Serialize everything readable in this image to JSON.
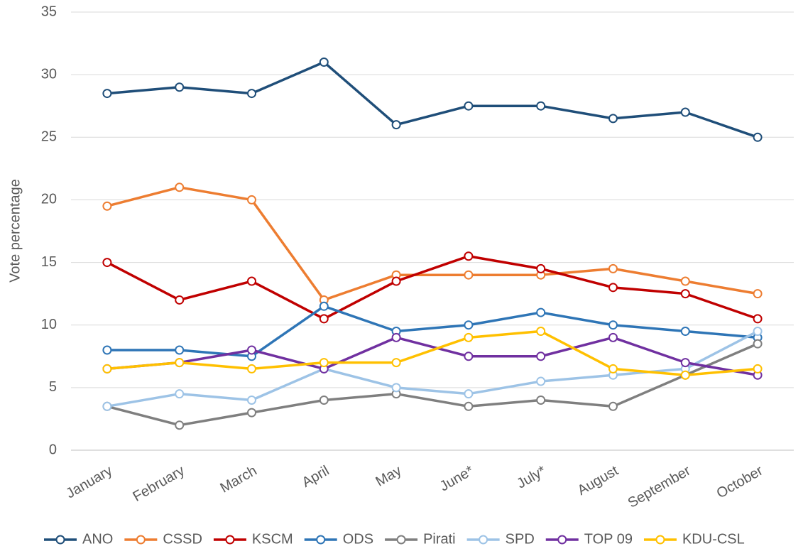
{
  "chart_data": {
    "type": "line",
    "y_label": "Vote percentage",
    "categories": [
      "January",
      "February",
      "March",
      "April",
      "May",
      "June*",
      "July*",
      "August",
      "September",
      "October"
    ],
    "series": [
      {
        "name": "ANO",
        "color": "#1f4e79",
        "values": [
          28.5,
          29,
          28.5,
          31,
          26,
          27.5,
          27.5,
          26.5,
          27,
          25
        ]
      },
      {
        "name": "CSSD",
        "color": "#ed7d31",
        "values": [
          19.5,
          21,
          20,
          12,
          14,
          14,
          14,
          14.5,
          13.5,
          12.5
        ]
      },
      {
        "name": "KSCM",
        "color": "#c00000",
        "values": [
          15,
          12,
          13.5,
          10.5,
          13.5,
          15.5,
          14.5,
          13,
          12.5,
          10.5
        ]
      },
      {
        "name": "ODS",
        "color": "#2e75b6",
        "values": [
          8,
          8,
          7.5,
          11.5,
          9.5,
          10,
          11,
          10,
          9.5,
          9
        ]
      },
      {
        "name": "Pirati",
        "color": "#7f7f7f",
        "values": [
          3.5,
          2,
          3,
          4,
          4.5,
          3.5,
          4,
          3.5,
          6,
          8.5
        ]
      },
      {
        "name": "SPD",
        "color": "#9dc3e6",
        "values": [
          3.5,
          4.5,
          4,
          6.5,
          5,
          4.5,
          5.5,
          6,
          6.5,
          9.5
        ]
      },
      {
        "name": "TOP 09",
        "color": "#7030a0",
        "values": [
          6.5,
          7,
          8,
          6.5,
          9,
          7.5,
          7.5,
          9,
          7,
          6
        ]
      },
      {
        "name": "KDU-CSL",
        "color": "#ffc000",
        "values": [
          6.5,
          7,
          6.5,
          7,
          7,
          9,
          9.5,
          6.5,
          6,
          6.5
        ]
      }
    ],
    "ylim": [
      0,
      35
    ],
    "yticks": [
      0,
      5,
      10,
      15,
      20,
      25,
      30,
      35
    ],
    "grid": true,
    "legend": "bottom"
  }
}
